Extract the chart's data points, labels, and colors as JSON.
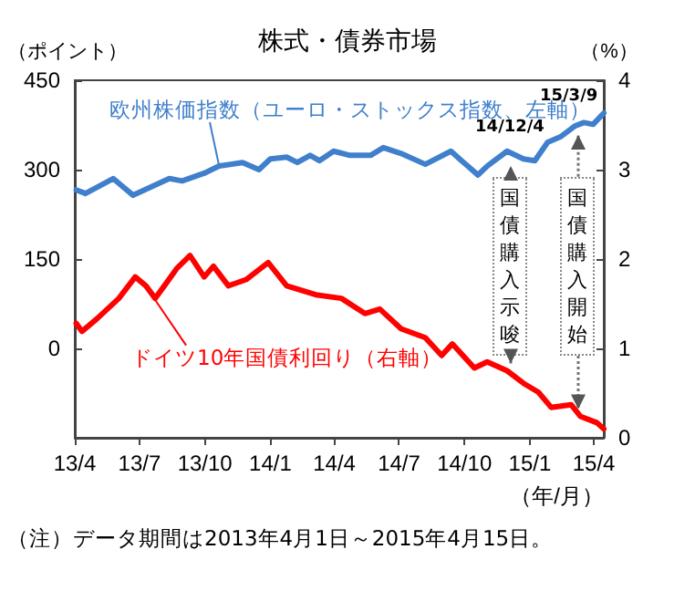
{
  "chart_data": {
    "type": "line",
    "title": "株式・債券市場",
    "ylabel": "（ポイント）",
    "y2label": "（%）",
    "xlabel": "（年/月）",
    "xlim": [
      "2013-04-01",
      "2015-04-15"
    ],
    "xticks": [
      {
        "value": "2013-04-01",
        "label": "13/4"
      },
      {
        "value": "2013-07-01",
        "label": "13/7"
      },
      {
        "value": "2013-10-01",
        "label": "13/10"
      },
      {
        "value": "2014-01-01",
        "label": "14/1"
      },
      {
        "value": "2014-04-01",
        "label": "14/4"
      },
      {
        "value": "2014-07-01",
        "label": "14/7"
      },
      {
        "value": "2014-10-01",
        "label": "14/10"
      },
      {
        "value": "2015-01-01",
        "label": "15/1"
      },
      {
        "value": "2015-04-01",
        "label": "15/4"
      }
    ],
    "ylim": [
      -150,
      450
    ],
    "yticks": [
      0,
      150,
      300,
      450
    ],
    "y2lim": [
      0,
      4
    ],
    "y2ticks": [
      0,
      1,
      2,
      3,
      4
    ],
    "marker": "none",
    "line_style": "solid",
    "series": [
      {
        "name": "欧州株価指数（ユーロ・ストックス指数、左軸）",
        "color": "#3f7fcc",
        "x": [
          "2013-04-03",
          "2013-04-16",
          "2013-05-25",
          "2013-06-22",
          "2013-08-12",
          "2013-08-30",
          "2013-09-30",
          "2013-10-21",
          "2013-11-23",
          "2013-12-16",
          "2014-01-01",
          "2014-01-24",
          "2014-02-08",
          "2014-02-26",
          "2014-03-11",
          "2014-03-31",
          "2014-04-23",
          "2014-05-22",
          "2014-06-09",
          "2014-07-04",
          "2014-08-07",
          "2014-09-12",
          "2014-09-27",
          "2014-10-20",
          "2014-11-02",
          "2014-11-30",
          "2014-12-23",
          "2015-01-08",
          "2015-01-26",
          "2015-02-13",
          "2015-03-05",
          "2015-03-18",
          "2015-03-31",
          "2015-04-15"
        ],
        "values": [
          266,
          260,
          285,
          257,
          285,
          281,
          294,
          306,
          312,
          300,
          318,
          321,
          312,
          324,
          315,
          331,
          324,
          324,
          337,
          327,
          309,
          331,
          315,
          291,
          306,
          331,
          318,
          315,
          346,
          355,
          373,
          379,
          376,
          395
        ]
      },
      {
        "name": "ドイツ10年国債利回り（右軸）",
        "color": "#ff0000",
        "axis": "y2",
        "x": [
          "2013-04-03",
          "2013-04-11",
          "2013-05-02",
          "2013-06-02",
          "2013-06-25",
          "2013-07-10",
          "2013-07-23",
          "2013-08-05",
          "2013-08-23",
          "2013-09-10",
          "2013-09-30",
          "2013-10-13",
          "2013-11-03",
          "2013-11-28",
          "2013-12-29",
          "2014-01-24",
          "2014-03-06",
          "2014-04-11",
          "2014-05-14",
          "2014-06-04",
          "2014-07-04",
          "2014-08-07",
          "2014-08-30",
          "2014-09-14",
          "2014-10-15",
          "2014-11-02",
          "2014-11-30",
          "2014-12-23",
          "2015-01-13",
          "2015-01-31",
          "2015-02-28",
          "2015-03-13",
          "2015-04-05",
          "2015-04-15"
        ],
        "values": [
          1.28,
          1.19,
          1.33,
          1.56,
          1.8,
          1.7,
          1.56,
          1.7,
          1.9,
          2.04,
          1.8,
          1.92,
          1.7,
          1.77,
          1.96,
          1.7,
          1.6,
          1.56,
          1.39,
          1.44,
          1.22,
          1.12,
          0.92,
          1.05,
          0.78,
          0.85,
          0.75,
          0.61,
          0.51,
          0.34,
          0.37,
          0.24,
          0.17,
          0.1
        ]
      }
    ],
    "annotations": [
      {
        "text": "14/12/4",
        "x": "2014-12-04",
        "y": 318
      },
      {
        "text": "15/3/9",
        "x": "2015-03-09",
        "y": 370
      },
      {
        "text": "国債購入示唆",
        "x": "2014-12-04"
      },
      {
        "text": "国債購入開始",
        "x": "2015-03-09"
      },
      "（注）データ期間は2013年4月1日～2015年4月15日。"
    ]
  }
}
